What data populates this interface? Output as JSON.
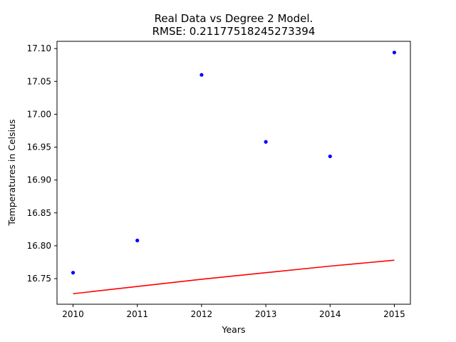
{
  "chart_data": {
    "type": "scatter",
    "title_line1": "Real Data vs Degree 2 Model.",
    "title_line2": "RMSE: 0.21177518245273394",
    "xlabel": "Years",
    "ylabel": "Temperatures in Celsius",
    "xlim": [
      2009.75,
      2015.25
    ],
    "ylim": [
      16.711,
      17.111
    ],
    "x_ticks": [
      2010,
      2011,
      2012,
      2013,
      2014,
      2015
    ],
    "y_ticks": [
      16.75,
      16.8,
      16.85,
      16.9,
      16.95,
      17.0,
      17.05,
      17.1
    ],
    "y_tick_labels": [
      "16.75",
      "16.80",
      "16.85",
      "16.90",
      "16.95",
      "17.00",
      "17.05",
      "17.10"
    ],
    "grid": false,
    "series": [
      {
        "kind": "points",
        "color": "#0000ff",
        "x": [
          2010,
          2011,
          2012,
          2013,
          2014,
          2015
        ],
        "y": [
          16.759,
          16.808,
          17.06,
          16.958,
          16.936,
          17.094
        ]
      },
      {
        "kind": "line",
        "color": "#ff0000",
        "x": [
          2010,
          2011,
          2012,
          2013,
          2014,
          2015
        ],
        "y": [
          16.727,
          16.738,
          16.749,
          16.759,
          16.769,
          16.778
        ]
      }
    ]
  }
}
